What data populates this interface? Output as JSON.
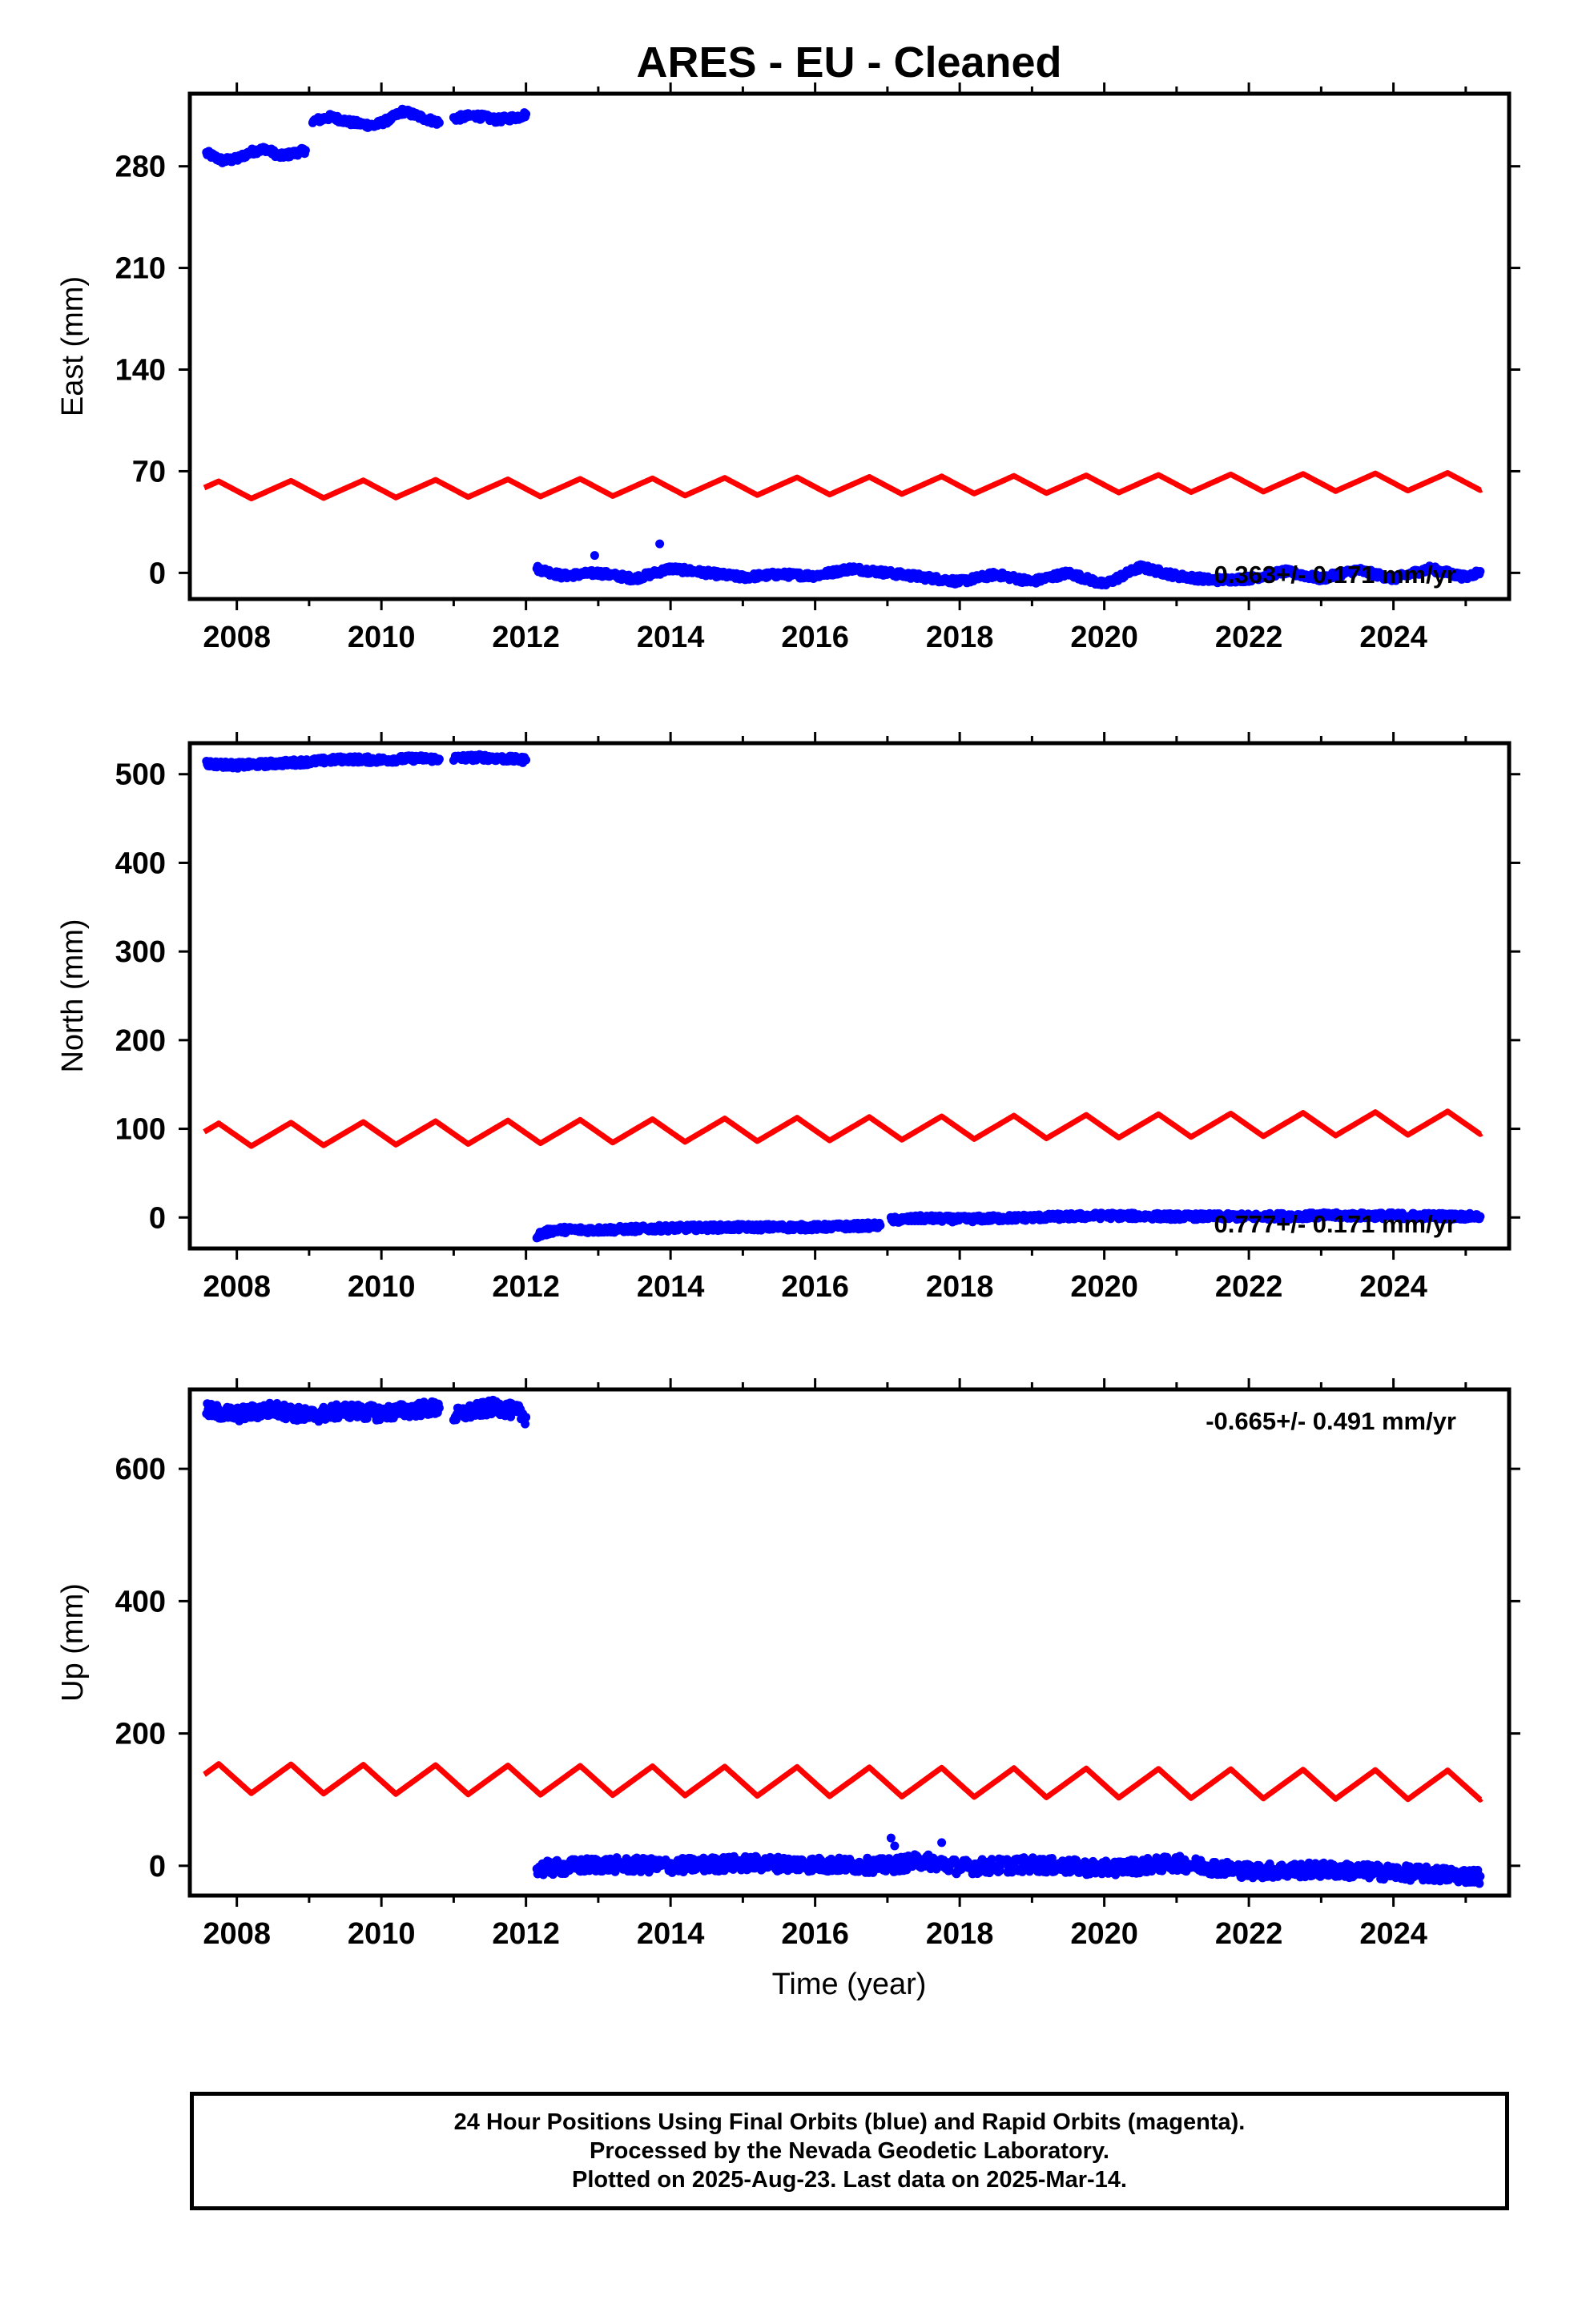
{
  "title": "ARES  - EU - Cleaned",
  "xlabel": "Time (year)",
  "colors": {
    "final_orbits": "#0000ff",
    "model": "#ff0000",
    "axes": "#000000"
  },
  "chart_data": [
    {
      "type": "scatter",
      "panel": "east",
      "ylabel": "East (mm)",
      "xlim": [
        2007.35,
        2025.6
      ],
      "ylim": [
        -18,
        330
      ],
      "yticks": [
        0,
        70,
        140,
        210,
        280
      ],
      "xticks": [
        2008,
        2010,
        2012,
        2014,
        2016,
        2018,
        2020,
        2022,
        2024
      ],
      "velocity_label": "0.363+/- 0.171 mm/yr",
      "velocity_label_position": "bottom-right",
      "series": [
        {
          "role": "daily positions (final orbits)",
          "color": "#0000ff",
          "segments": [
            {
              "x": [
                2007.58,
                2007.8,
                2008.0,
                2008.2,
                2008.4,
                2008.6,
                2008.8,
                2008.95
              ],
              "y": [
                289,
                284,
                285,
                290,
                292,
                287,
                289,
                291
              ]
            },
            {
              "x": [
                2009.05,
                2009.3,
                2009.6,
                2009.9,
                2010.1,
                2010.3,
                2010.6,
                2010.8
              ],
              "y": [
                311,
                314,
                310,
                308,
                312,
                318,
                313,
                310
              ]
            },
            {
              "x": [
                2011.0,
                2011.3,
                2011.6,
                2011.9,
                2012.0
              ],
              "y": [
                313,
                315,
                312,
                314,
                316
              ]
            },
            {
              "x": [
                2012.15,
                2012.5,
                2013.0,
                2013.5,
                2014.0,
                2014.5,
                2015.0,
                2015.5,
                2016.0,
                2016.5,
                2017.0,
                2017.5,
                2018.0,
                2018.5,
                2019.0,
                2019.5,
                2020.0,
                2020.5,
                2021.0,
                2021.5,
                2022.0,
                2022.5,
                2023.0,
                2023.5,
                2024.0,
                2024.5,
                2025.0,
                2025.2
              ],
              "y": [
                3,
                -2,
                0,
                -4,
                3,
                0,
                -3,
                -1,
                -2,
                3,
                0,
                -3,
                -6,
                -1,
                -6,
                0,
                -8,
                4,
                -2,
                -5,
                -4,
                1,
                -4,
                2,
                -4,
                3,
                -3,
                1
              ]
            },
            {
              "x": [
                2012.95,
                2013.85
              ],
              "y": [
                12,
                20
              ]
            }
          ]
        },
        {
          "role": "model fit",
          "color": "#ff0000",
          "base_start": 57,
          "base_end": 63,
          "annual_amplitude": 6
        }
      ]
    },
    {
      "type": "scatter",
      "panel": "north",
      "ylabel": "North (mm)",
      "xlim": [
        2007.35,
        2025.6
      ],
      "ylim": [
        -35,
        535
      ],
      "yticks": [
        0,
        100,
        200,
        300,
        400,
        500
      ],
      "xticks": [
        2008,
        2010,
        2012,
        2014,
        2016,
        2018,
        2020,
        2022,
        2024
      ],
      "velocity_label": "0.777+/- 0.171 mm/yr",
      "velocity_label_position": "bottom-right",
      "series": [
        {
          "role": "daily positions (final orbits)",
          "color": "#0000ff",
          "segments": [
            {
              "x": [
                2007.58,
                2008.0,
                2008.5,
                2009.0,
                2009.5,
                2010.0,
                2010.5,
                2010.8
              ],
              "y": [
                512,
                510,
                512,
                514,
                517,
                516,
                518,
                517
              ]
            },
            {
              "x": [
                2011.0,
                2011.4,
                2011.8,
                2012.0
              ],
              "y": [
                518,
                519,
                517,
                516
              ]
            },
            {
              "x": [
                2012.15,
                2012.4,
                2013.0,
                2014.0,
                2015.0,
                2016.0,
                2016.9
              ],
              "y": [
                -20,
                -14,
                -14,
                -12,
                -11,
                -11,
                -9
              ]
            },
            {
              "x": [
                2017.05,
                2017.5,
                2018.0,
                2019.0,
                2020.0,
                2021.0,
                2022.0,
                2023.0,
                2024.0,
                2025.2
              ],
              "y": [
                -3,
                -1,
                -2,
                0,
                2,
                1,
                1,
                2,
                2,
                1
              ]
            }
          ]
        },
        {
          "role": "model fit",
          "color": "#ff0000",
          "base_start": 93,
          "base_end": 107,
          "annual_amplitude": 13
        }
      ]
    },
    {
      "type": "scatter",
      "panel": "up",
      "ylabel": "Up (mm)",
      "xlim": [
        2007.35,
        2025.6
      ],
      "ylim": [
        -45,
        720
      ],
      "yticks": [
        0,
        200,
        400,
        600
      ],
      "xticks": [
        2008,
        2010,
        2012,
        2014,
        2016,
        2018,
        2020,
        2022,
        2024
      ],
      "velocity_label": "-0.665+/- 0.491 mm/yr",
      "velocity_label_position": "top-right",
      "series": [
        {
          "role": "daily positions (final orbits)",
          "color": "#0000ff",
          "segments": [
            {
              "x": [
                2007.58,
                2008.0,
                2008.5,
                2009.0,
                2009.5,
                2010.0,
                2010.5,
                2010.8
              ],
              "y": [
                688,
                682,
                690,
                680,
                688,
                684,
                690,
                692
              ]
            },
            {
              "x": [
                2011.0,
                2011.3,
                2011.6,
                2011.9,
                2012.0
              ],
              "y": [
                680,
                688,
                694,
                685,
                678
              ]
            },
            {
              "x": [
                2012.15,
                2013.0,
                2014.0,
                2015.0,
                2016.0,
                2017.0,
                2017.5,
                2018.0,
                2019.0,
                2020.0,
                2021.0,
                2022.0,
                2023.0,
                2024.0,
                2025.2
              ],
              "y": [
                -5,
                2,
                0,
                4,
                2,
                0,
                8,
                -2,
                2,
                -4,
                4,
                -8,
                -6,
                -10,
                -16
              ]
            },
            {
              "x": [
                2017.05,
                2017.1,
                2017.75
              ],
              "y": [
                42,
                30,
                35
              ]
            }
          ]
        },
        {
          "role": "model fit",
          "color": "#ff0000",
          "base_start": 132,
          "base_end": 122,
          "annual_amplitude": 22
        }
      ]
    }
  ],
  "caption": {
    "line1": "24 Hour Positions Using Final Orbits (blue) and Rapid Orbits (magenta).",
    "line2": "Processed by the Nevada Geodetic Laboratory.",
    "line3": "Plotted on 2025-Aug-23. Last data on 2025-Mar-14."
  }
}
